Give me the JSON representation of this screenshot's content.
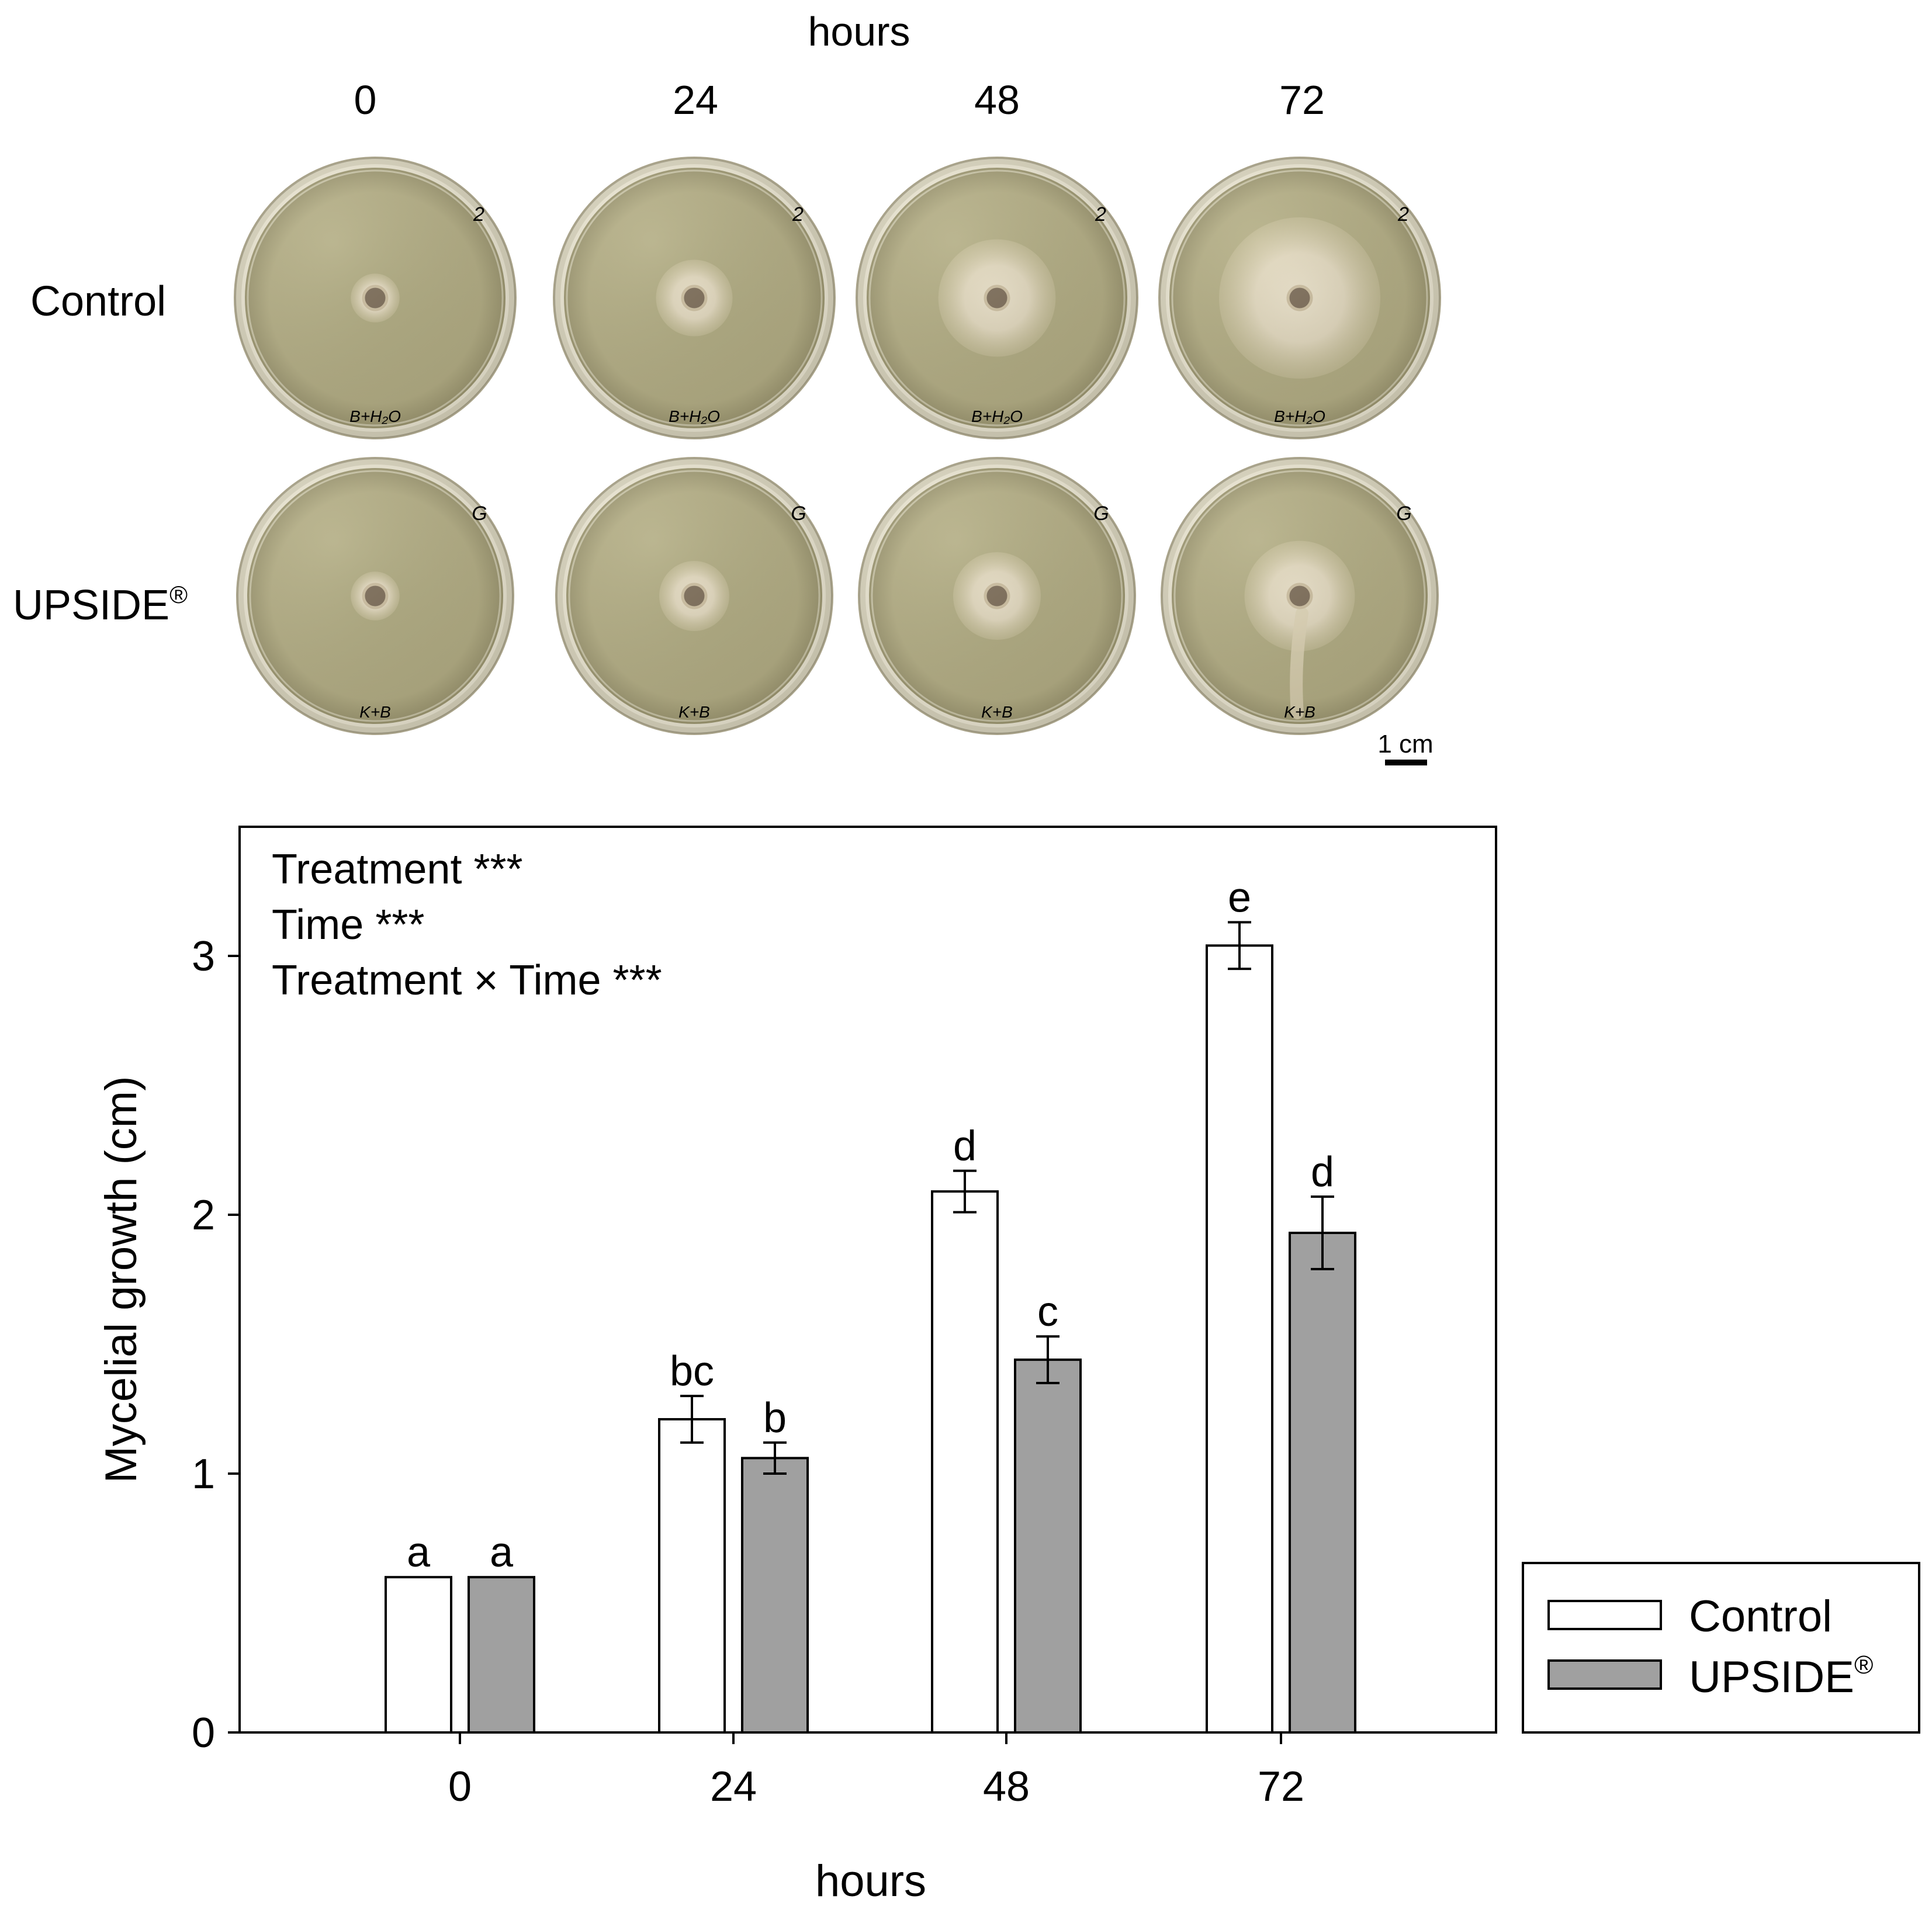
{
  "photo_panel": {
    "header_label": "hours",
    "time_labels": [
      "0",
      "24",
      "48",
      "72"
    ],
    "row_labels": [
      "Control",
      "UPSIDE"
    ],
    "registered_mark": "®",
    "plate_markings": {
      "control": [
        "2",
        "B+H₂O"
      ],
      "upside": [
        "G",
        "K+B"
      ]
    },
    "scale_bar_label": "1 cm",
    "colors": {
      "agar": "#b0ab7e",
      "agar_dark": "#948e68",
      "rim": "#d9d4bd",
      "mycelium": "#e7ddc4",
      "plug": "#7a6a55"
    },
    "colony_growth_cm": {
      "control": [
        0.6,
        1.2,
        2.08,
        3.03
      ],
      "upside": [
        0.6,
        1.06,
        1.44,
        1.93
      ]
    }
  },
  "chart_data": {
    "type": "bar",
    "categories": [
      "0",
      "24",
      "48",
      "72"
    ],
    "series": [
      {
        "name": "Control",
        "values": [
          0.6,
          1.21,
          2.09,
          3.04
        ],
        "errors": [
          0,
          0.09,
          0.08,
          0.09
        ],
        "letters": [
          "a",
          "bc",
          "d",
          "e"
        ],
        "fill": "#ffffff"
      },
      {
        "name": "UPSIDE",
        "values": [
          0.6,
          1.06,
          1.44,
          1.93
        ],
        "errors": [
          0,
          0.06,
          0.09,
          0.14
        ],
        "letters": [
          "a",
          "b",
          "c",
          "d"
        ],
        "fill": "#a0a0a0"
      }
    ],
    "registered_mark": "®",
    "xlabel": "hours",
    "ylabel": "Mycelial growth (cm)",
    "yticks": [
      0,
      1,
      2,
      3
    ],
    "ylim": [
      0,
      3.45
    ],
    "grid": false,
    "legend_position": "right-bottom, outside plot",
    "annotations": [
      "Treatment ***",
      "Time ***",
      "Treatment × Time ***"
    ]
  }
}
